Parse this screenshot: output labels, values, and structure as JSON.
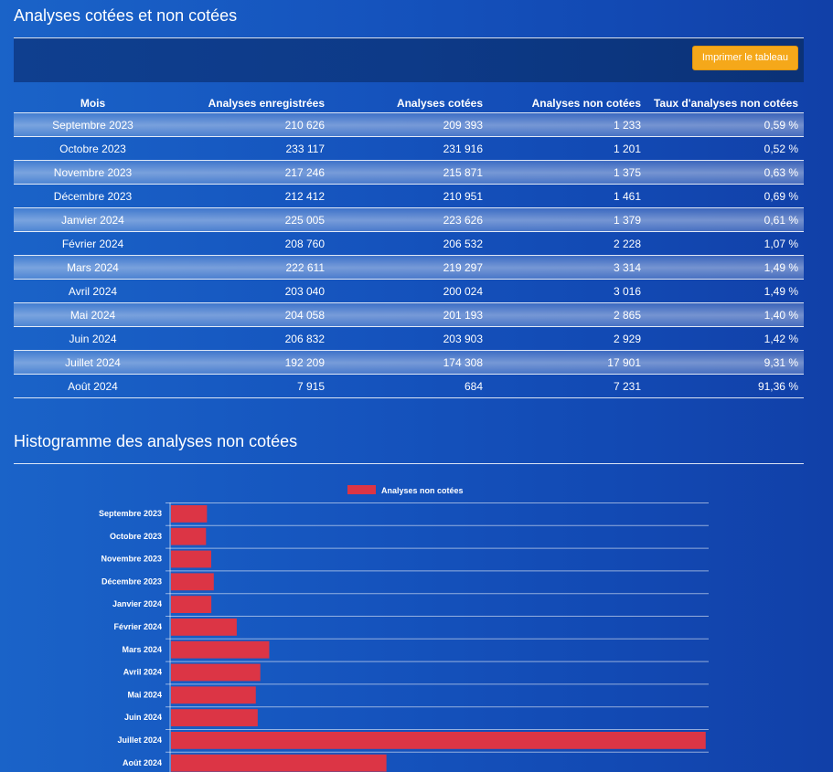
{
  "section1": {
    "title": "Analyses cotées et non cotées",
    "print_button": "Imprimer le tableau"
  },
  "table": {
    "headers": [
      "Mois",
      "Analyses enregistrées",
      "Analyses cotées",
      "Analyses non cotées",
      "Taux d'analyses non cotées"
    ],
    "rows": [
      [
        "Septembre 2023",
        "210 626",
        "209 393",
        "1 233",
        "0,59 %"
      ],
      [
        "Octobre 2023",
        "233 117",
        "231 916",
        "1 201",
        "0,52 %"
      ],
      [
        "Novembre 2023",
        "217 246",
        "215 871",
        "1 375",
        "0,63 %"
      ],
      [
        "Décembre 2023",
        "212 412",
        "210 951",
        "1 461",
        "0,69 %"
      ],
      [
        "Janvier 2024",
        "225 005",
        "223 626",
        "1 379",
        "0,61 %"
      ],
      [
        "Février 2024",
        "208 760",
        "206 532",
        "2 228",
        "1,07 %"
      ],
      [
        "Mars 2024",
        "222 611",
        "219 297",
        "3 314",
        "1,49 %"
      ],
      [
        "Avril 2024",
        "203 040",
        "200 024",
        "3 016",
        "1,49 %"
      ],
      [
        "Mai 2024",
        "204 058",
        "201 193",
        "2 865",
        "1,40 %"
      ],
      [
        "Juin 2024",
        "206 832",
        "203 903",
        "2 929",
        "1,42 %"
      ],
      [
        "Juillet 2024",
        "192 209",
        "174 308",
        "17 901",
        "9,31 %"
      ],
      [
        "Août 2024",
        "7 915",
        "684",
        "7 231",
        "91,36 %"
      ]
    ]
  },
  "section2": {
    "title": "Histogramme des analyses non cotées"
  },
  "chart_data": {
    "type": "bar",
    "orientation": "horizontal",
    "categories": [
      "Septembre 2023",
      "Octobre 2023",
      "Novembre 2023",
      "Décembre 2023",
      "Janvier 2024",
      "Février 2024",
      "Mars 2024",
      "Avril 2024",
      "Mai 2024",
      "Juin 2024",
      "Juillet 2024",
      "Août 2024"
    ],
    "series": [
      {
        "name": "Analyses non cotées",
        "values": [
          1233,
          1201,
          1375,
          1461,
          1379,
          2228,
          3314,
          3016,
          2865,
          2929,
          17901,
          7231
        ],
        "color": "#dc3545"
      }
    ],
    "xlim": [
      0,
      18000
    ],
    "grid": true,
    "legend": "top-center",
    "xlabel": "",
    "ylabel": ""
  },
  "colors": {
    "accent": "#f5a81a",
    "bar": "#dc3545"
  }
}
